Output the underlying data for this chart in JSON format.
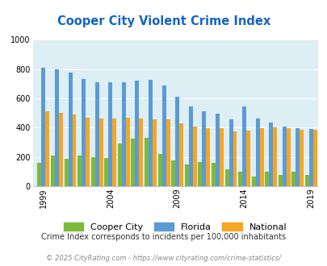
{
  "title": "Cooper City Violent Crime Index",
  "subtitle": "Crime Index corresponds to incidents per 100,000 inhabitants",
  "footer": "© 2025 CityRating.com - https://www.cityrating.com/crime-statistics/",
  "years": [
    1999,
    2000,
    2001,
    2002,
    2003,
    2004,
    2005,
    2006,
    2007,
    2008,
    2009,
    2010,
    2011,
    2012,
    2013,
    2014,
    2015,
    2016,
    2017,
    2018,
    2019
  ],
  "cooper_city": [
    160,
    210,
    190,
    210,
    200,
    195,
    290,
    325,
    330,
    220,
    175,
    150,
    165,
    160,
    115,
    100,
    65,
    100,
    75,
    100,
    75
  ],
  "florida": [
    810,
    800,
    775,
    735,
    710,
    710,
    710,
    720,
    725,
    690,
    610,
    545,
    515,
    495,
    460,
    545,
    465,
    435,
    410,
    395,
    390
  ],
  "national": [
    510,
    500,
    490,
    470,
    465,
    465,
    470,
    465,
    455,
    460,
    430,
    405,
    395,
    395,
    375,
    380,
    395,
    400,
    395,
    385,
    385
  ],
  "bar_colors": {
    "cooper_city": "#7db93b",
    "florida": "#5b9bd5",
    "national": "#f5a623"
  },
  "bg_color": "#ddeef4",
  "title_color": "#1565c0",
  "subtitle_color": "#333333",
  "footer_color": "#888888",
  "ylim": [
    0,
    1000
  ],
  "yticks": [
    0,
    200,
    400,
    600,
    800,
    1000
  ],
  "x_tick_years": [
    1999,
    2004,
    2009,
    2014,
    2019
  ]
}
